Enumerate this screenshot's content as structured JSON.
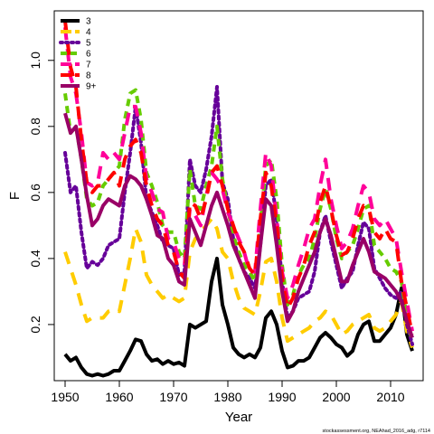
{
  "chart_data": {
    "type": "line",
    "title": "",
    "xlabel": "Year",
    "ylabel": "F",
    "xlim": [
      1948,
      2016
    ],
    "ylim": [
      0.03,
      1.15
    ],
    "x_ticks": [
      1950,
      1960,
      1970,
      1980,
      1990,
      2000,
      2010
    ],
    "y_ticks": [
      0.2,
      0.4,
      0.6,
      0.8,
      1.0
    ],
    "y_tick_labels": [
      "0.2",
      "0.4",
      "0.6",
      "0.8",
      "1.0"
    ],
    "grid": false,
    "legend_position": "top-left",
    "footer": "stockassessment.org, NEAhad_2016_adg, r7114",
    "series": [
      {
        "name": "3",
        "color": "#000000",
        "dash": "solid",
        "x": [
          1950,
          1951,
          1952,
          1953,
          1954,
          1955,
          1956,
          1957,
          1958,
          1959,
          1960,
          1961,
          1962,
          1963,
          1964,
          1965,
          1966,
          1967,
          1968,
          1969,
          1970,
          1971,
          1972,
          1973,
          1974,
          1975,
          1976,
          1977,
          1978,
          1979,
          1980,
          1981,
          1982,
          1983,
          1984,
          1985,
          1986,
          1987,
          1988,
          1989,
          1990,
          1991,
          1992,
          1993,
          1994,
          1995,
          1996,
          1997,
          1998,
          1999,
          2000,
          2001,
          2002,
          2003,
          2004,
          2005,
          2006,
          2007,
          2008,
          2009,
          2010,
          2011,
          2012,
          2013,
          2014
        ],
        "values": [
          0.11,
          0.09,
          0.1,
          0.07,
          0.05,
          0.045,
          0.05,
          0.045,
          0.05,
          0.06,
          0.06,
          0.09,
          0.12,
          0.155,
          0.15,
          0.11,
          0.09,
          0.095,
          0.08,
          0.09,
          0.08,
          0.085,
          0.075,
          0.2,
          0.19,
          0.2,
          0.21,
          0.33,
          0.4,
          0.26,
          0.2,
          0.13,
          0.11,
          0.1,
          0.11,
          0.1,
          0.13,
          0.22,
          0.24,
          0.2,
          0.12,
          0.07,
          0.075,
          0.09,
          0.09,
          0.1,
          0.13,
          0.16,
          0.175,
          0.16,
          0.14,
          0.13,
          0.105,
          0.12,
          0.17,
          0.2,
          0.21,
          0.15,
          0.15,
          0.17,
          0.19,
          0.23,
          0.31,
          0.17,
          0.12
        ]
      },
      {
        "name": "4",
        "color": "#ffcc00",
        "dash": "long",
        "x": [
          1950,
          1951,
          1952,
          1953,
          1954,
          1955,
          1956,
          1957,
          1958,
          1959,
          1960,
          1961,
          1962,
          1963,
          1964,
          1965,
          1966,
          1967,
          1968,
          1969,
          1970,
          1971,
          1972,
          1973,
          1974,
          1975,
          1976,
          1977,
          1978,
          1979,
          1980,
          1981,
          1982,
          1983,
          1984,
          1985,
          1986,
          1987,
          1988,
          1989,
          1990,
          1991,
          1992,
          1993,
          1994,
          1995,
          1996,
          1997,
          1998,
          1999,
          2000,
          2001,
          2002,
          2003,
          2004,
          2005,
          2006,
          2007,
          2008,
          2009,
          2010,
          2011,
          2012,
          2013,
          2014
        ],
        "values": [
          0.42,
          0.37,
          0.32,
          0.26,
          0.21,
          0.22,
          0.22,
          0.22,
          0.24,
          0.245,
          0.24,
          0.32,
          0.4,
          0.49,
          0.45,
          0.35,
          0.32,
          0.3,
          0.28,
          0.29,
          0.28,
          0.27,
          0.28,
          0.42,
          0.46,
          0.48,
          0.5,
          0.52,
          0.49,
          0.42,
          0.4,
          0.33,
          0.28,
          0.25,
          0.24,
          0.23,
          0.3,
          0.39,
          0.4,
          0.33,
          0.22,
          0.15,
          0.16,
          0.17,
          0.18,
          0.19,
          0.21,
          0.22,
          0.24,
          0.23,
          0.2,
          0.17,
          0.18,
          0.2,
          0.21,
          0.22,
          0.23,
          0.19,
          0.18,
          0.19,
          0.21,
          0.23,
          0.27,
          0.18,
          0.13
        ]
      },
      {
        "name": "5",
        "color": "#660099",
        "dash": "dotted",
        "x": [
          1950,
          1951,
          1952,
          1953,
          1954,
          1955,
          1956,
          1957,
          1958,
          1959,
          1960,
          1961,
          1962,
          1963,
          1964,
          1965,
          1966,
          1967,
          1968,
          1969,
          1970,
          1971,
          1972,
          1973,
          1974,
          1975,
          1976,
          1977,
          1978,
          1979,
          1980,
          1981,
          1982,
          1983,
          1984,
          1985,
          1986,
          1987,
          1988,
          1989,
          1990,
          1991,
          1992,
          1993,
          1994,
          1995,
          1996,
          1997,
          1998,
          1999,
          2000,
          2001,
          2002,
          2003,
          2004,
          2005,
          2006,
          2007,
          2008,
          2009,
          2010,
          2011,
          2012,
          2013,
          2014
        ],
        "values": [
          0.72,
          0.6,
          0.62,
          0.48,
          0.37,
          0.39,
          0.38,
          0.4,
          0.44,
          0.45,
          0.46,
          0.6,
          0.72,
          0.86,
          0.75,
          0.58,
          0.54,
          0.5,
          0.45,
          0.44,
          0.43,
          0.35,
          0.36,
          0.7,
          0.62,
          0.6,
          0.67,
          0.77,
          0.92,
          0.63,
          0.58,
          0.46,
          0.4,
          0.36,
          0.34,
          0.31,
          0.44,
          0.62,
          0.64,
          0.52,
          0.33,
          0.22,
          0.24,
          0.28,
          0.29,
          0.3,
          0.36,
          0.48,
          0.53,
          0.45,
          0.38,
          0.31,
          0.34,
          0.36,
          0.44,
          0.51,
          0.49,
          0.37,
          0.34,
          0.31,
          0.29,
          0.28,
          0.3,
          0.2,
          0.14
        ]
      },
      {
        "name": "6",
        "color": "#66cc00",
        "dash": "dashed",
        "x": [
          1950,
          1951,
          1952,
          1953,
          1954,
          1955,
          1956,
          1957,
          1958,
          1959,
          1960,
          1961,
          1962,
          1963,
          1964,
          1965,
          1966,
          1967,
          1968,
          1969,
          1970,
          1971,
          1972,
          1973,
          1974,
          1975,
          1976,
          1977,
          1978,
          1979,
          1980,
          1981,
          1982,
          1983,
          1984,
          1985,
          1986,
          1987,
          1988,
          1989,
          1990,
          1991,
          1992,
          1993,
          1994,
          1995,
          1996,
          1997,
          1998,
          1999,
          2000,
          2001,
          2002,
          2003,
          2004,
          2005,
          2006,
          2007,
          2008,
          2009,
          2010,
          2011,
          2012,
          2013,
          2014
        ],
        "values": [
          0.9,
          0.78,
          0.8,
          0.7,
          0.58,
          0.56,
          0.57,
          0.62,
          0.64,
          0.66,
          0.68,
          0.82,
          0.9,
          0.91,
          0.82,
          0.66,
          0.62,
          0.57,
          0.5,
          0.48,
          0.48,
          0.42,
          0.4,
          0.67,
          0.56,
          0.55,
          0.62,
          0.68,
          0.8,
          0.64,
          0.55,
          0.47,
          0.42,
          0.38,
          0.36,
          0.33,
          0.5,
          0.68,
          0.7,
          0.58,
          0.38,
          0.26,
          0.29,
          0.35,
          0.38,
          0.4,
          0.46,
          0.55,
          0.61,
          0.55,
          0.46,
          0.4,
          0.42,
          0.44,
          0.49,
          0.55,
          0.56,
          0.44,
          0.42,
          0.4,
          0.37,
          0.36,
          0.33,
          0.22,
          0.15
        ]
      },
      {
        "name": "7",
        "color": "#ff0099",
        "dash": "long",
        "x": [
          1950,
          1951,
          1952,
          1953,
          1954,
          1955,
          1956,
          1957,
          1958,
          1959,
          1960,
          1961,
          1962,
          1963,
          1964,
          1965,
          1966,
          1967,
          1968,
          1969,
          1970,
          1971,
          1972,
          1973,
          1974,
          1975,
          1976,
          1977,
          1978,
          1979,
          1980,
          1981,
          1982,
          1983,
          1984,
          1985,
          1986,
          1987,
          1988,
          1989,
          1990,
          1991,
          1992,
          1993,
          1994,
          1995,
          1996,
          1997,
          1998,
          1999,
          2000,
          2001,
          2002,
          2003,
          2004,
          2005,
          2006,
          2007,
          2008,
          2009,
          2010,
          2011,
          2012,
          2013,
          2014
        ],
        "values": [
          1.1,
          0.95,
          0.9,
          0.78,
          0.63,
          0.62,
          0.63,
          0.72,
          0.7,
          0.72,
          0.7,
          0.78,
          0.86,
          0.86,
          0.78,
          0.64,
          0.6,
          0.55,
          0.54,
          0.46,
          0.45,
          0.4,
          0.38,
          0.55,
          0.53,
          0.5,
          0.59,
          0.66,
          0.64,
          0.61,
          0.54,
          0.5,
          0.46,
          0.42,
          0.36,
          0.36,
          0.55,
          0.72,
          0.68,
          0.52,
          0.36,
          0.28,
          0.32,
          0.38,
          0.43,
          0.49,
          0.52,
          0.62,
          0.7,
          0.58,
          0.5,
          0.43,
          0.45,
          0.49,
          0.56,
          0.62,
          0.6,
          0.52,
          0.5,
          0.52,
          0.49,
          0.46,
          0.36,
          0.27,
          0.18
        ]
      },
      {
        "name": "8",
        "color": "#ff0000",
        "dash": "long",
        "x": [
          1950,
          1951,
          1952,
          1953,
          1954,
          1955,
          1956,
          1957,
          1958,
          1959,
          1960,
          1961,
          1962,
          1963,
          1964,
          1965,
          1966,
          1967,
          1968,
          1969,
          1970,
          1971,
          1972,
          1973,
          1974,
          1975,
          1976,
          1977,
          1978,
          1979,
          1980,
          1981,
          1982,
          1983,
          1984,
          1985,
          1986,
          1987,
          1988,
          1989,
          1990,
          1991,
          1992,
          1993,
          1994,
          1995,
          1996,
          1997,
          1998,
          1999,
          2000,
          2001,
          2002,
          2003,
          2004,
          2005,
          2006,
          2007,
          2008,
          2009,
          2010,
          2011,
          2012,
          2013,
          2014
        ],
        "values": [
          1.12,
          0.98,
          0.92,
          0.76,
          0.63,
          0.6,
          0.62,
          0.62,
          0.64,
          0.66,
          0.62,
          0.7,
          0.74,
          0.76,
          0.72,
          0.62,
          0.56,
          0.52,
          0.5,
          0.44,
          0.42,
          0.36,
          0.34,
          0.57,
          0.56,
          0.52,
          0.58,
          0.66,
          0.68,
          0.62,
          0.55,
          0.5,
          0.45,
          0.42,
          0.37,
          0.35,
          0.52,
          0.66,
          0.62,
          0.5,
          0.34,
          0.25,
          0.28,
          0.34,
          0.38,
          0.44,
          0.48,
          0.57,
          0.62,
          0.55,
          0.47,
          0.41,
          0.42,
          0.46,
          0.52,
          0.56,
          0.55,
          0.48,
          0.46,
          0.49,
          0.46,
          0.45,
          0.33,
          0.25,
          0.17
        ]
      },
      {
        "name": "9+",
        "color": "#990066",
        "dash": "solid",
        "x": [
          1950,
          1951,
          1952,
          1953,
          1954,
          1955,
          1956,
          1957,
          1958,
          1959,
          1960,
          1961,
          1962,
          1963,
          1964,
          1965,
          1966,
          1967,
          1968,
          1969,
          1970,
          1971,
          1972,
          1973,
          1974,
          1975,
          1976,
          1977,
          1978,
          1979,
          1980,
          1981,
          1982,
          1983,
          1984,
          1985,
          1986,
          1987,
          1988,
          1989,
          1990,
          1991,
          1992,
          1993,
          1994,
          1995,
          1996,
          1997,
          1998,
          1999,
          2000,
          2001,
          2002,
          2003,
          2004,
          2005,
          2006,
          2007,
          2008,
          2009,
          2010,
          2011,
          2012,
          2013,
          2014
        ],
        "values": [
          0.84,
          0.78,
          0.8,
          0.7,
          0.59,
          0.5,
          0.52,
          0.56,
          0.58,
          0.57,
          0.56,
          0.62,
          0.65,
          0.64,
          0.62,
          0.58,
          0.53,
          0.47,
          0.46,
          0.4,
          0.38,
          0.33,
          0.32,
          0.52,
          0.48,
          0.44,
          0.5,
          0.56,
          0.6,
          0.55,
          0.5,
          0.44,
          0.4,
          0.36,
          0.32,
          0.28,
          0.44,
          0.58,
          0.56,
          0.44,
          0.3,
          0.21,
          0.24,
          0.3,
          0.34,
          0.38,
          0.42,
          0.48,
          0.52,
          0.47,
          0.4,
          0.33,
          0.33,
          0.38,
          0.42,
          0.46,
          0.42,
          0.36,
          0.35,
          0.34,
          0.32,
          0.3,
          0.27,
          0.21,
          0.16
        ]
      }
    ]
  }
}
